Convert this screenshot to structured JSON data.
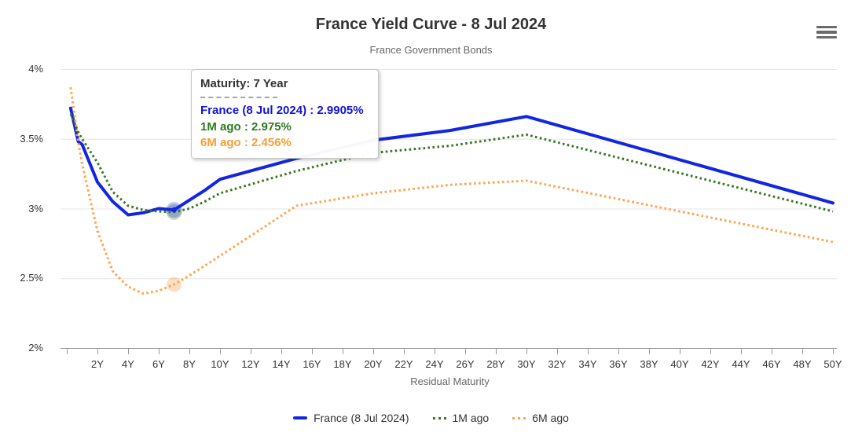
{
  "header": {
    "title": "France Yield Curve - 8 Jul 2024",
    "subtitle": "France Government Bonds"
  },
  "context_menu": {
    "icon": "hamburger-menu-icon"
  },
  "tooltip": {
    "header": "Maturity: 7 Year",
    "rows": [
      {
        "label": "France (8 Jul 2024)",
        "value": "2.9905%",
        "text": "France (8 Jul 2024) : 2.9905%",
        "color": "#1313d6"
      },
      {
        "label": "1M ago",
        "value": "2.975%",
        "text": "1M ago : 2.975%",
        "color": "#2e7a1e"
      },
      {
        "label": "6M ago",
        "value": "2.456%",
        "text": "6M ago : 2.456%",
        "color": "#fb9d33"
      }
    ]
  },
  "legend": {
    "items": [
      {
        "label": "France (8 Jul 2024)",
        "color": "#1226e0",
        "dash": "solid"
      },
      {
        "label": "1M ago",
        "color": "#35781f",
        "dash": "dot"
      },
      {
        "label": "6M ago",
        "color": "#fda44e",
        "dash": "dot"
      }
    ]
  },
  "chart_data": {
    "type": "line",
    "title": "France Yield Curve - 8 Jul 2024",
    "subtitle": "France Government Bonds",
    "xlabel": "Residual Maturity",
    "ylabel": "",
    "xlim": [
      0,
      50
    ],
    "ylim": [
      2,
      4
    ],
    "grid": "horizontal",
    "legend_position": "bottom",
    "x": [
      0.25,
      0.75,
      1,
      2,
      3,
      4,
      5,
      6,
      7,
      8,
      9,
      10,
      15,
      20,
      25,
      30,
      50
    ],
    "x_tick_labels": [
      "2Y",
      "4Y",
      "6Y",
      "8Y",
      "10Y",
      "12Y",
      "14Y",
      "16Y",
      "18Y",
      "20Y",
      "22Y",
      "24Y",
      "26Y",
      "28Y",
      "30Y",
      "32Y",
      "34Y",
      "36Y",
      "38Y",
      "40Y",
      "42Y",
      "44Y",
      "46Y",
      "48Y",
      "50Y"
    ],
    "y_ticks": [
      {
        "value": 2,
        "label": "2%"
      },
      {
        "value": 2.5,
        "label": "2.5%"
      },
      {
        "value": 3,
        "label": "3%"
      },
      {
        "value": 3.5,
        "label": "3.5%"
      },
      {
        "value": 4,
        "label": "4%"
      }
    ],
    "series": [
      {
        "name": "France (8 Jul 2024)",
        "color": "#1226e0",
        "dash": "solid",
        "values": [
          3.72,
          3.48,
          3.46,
          3.19,
          3.05,
          2.955,
          2.97,
          3.0,
          2.9905,
          3.06,
          3.13,
          3.21,
          3.36,
          3.49,
          3.56,
          3.66,
          3.04
        ]
      },
      {
        "name": "1M ago",
        "color": "#35781f",
        "dash": "dot",
        "values": [
          3.68,
          3.55,
          3.5,
          3.33,
          3.12,
          3.02,
          2.99,
          2.98,
          2.975,
          3.0,
          3.05,
          3.11,
          3.27,
          3.4,
          3.45,
          3.53,
          2.98
        ]
      },
      {
        "name": "6M ago",
        "color": "#fda44e",
        "dash": "dot",
        "values": [
          3.87,
          3.48,
          3.32,
          2.84,
          2.55,
          2.44,
          2.39,
          2.41,
          2.456,
          2.52,
          2.59,
          2.66,
          3.02,
          3.11,
          3.17,
          3.2,
          2.76
        ]
      }
    ],
    "hover": {
      "x": 7,
      "values": [
        2.9905,
        2.975,
        2.456
      ]
    },
    "colors": {
      "grid": "#e6e6e6",
      "axis": "#999999",
      "tick_label": "#333333",
      "axis_title": "#666666"
    }
  }
}
